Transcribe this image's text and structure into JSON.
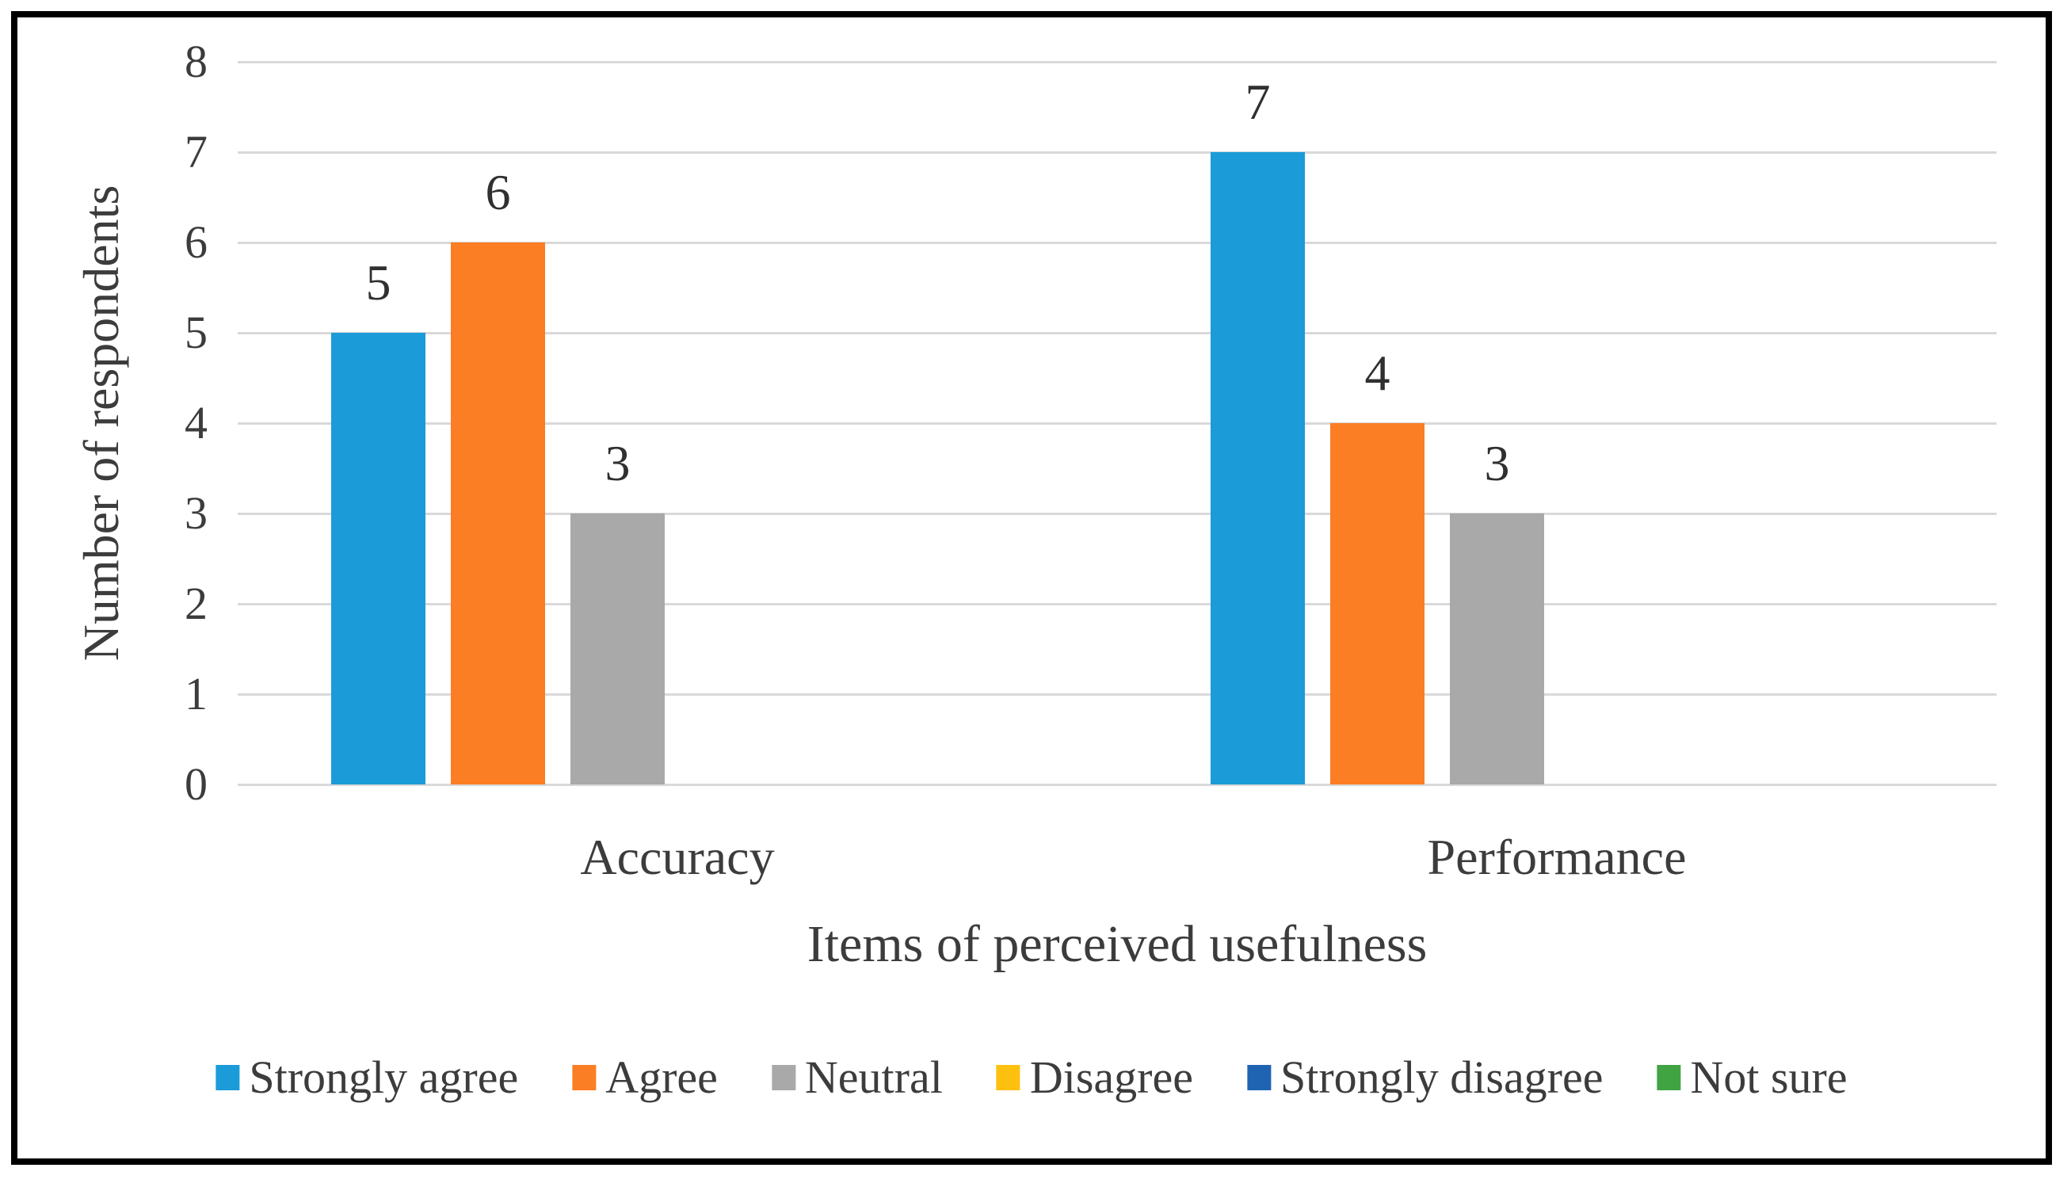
{
  "figure": {
    "background_color": "#ffffff",
    "frame_border_color": "#000000"
  },
  "chart_data": {
    "type": "bar",
    "title": "",
    "categories": [
      "Accuracy",
      "Performance"
    ],
    "series": [
      {
        "name": "Strongly agree",
        "color": "#1B9BD8",
        "values": [
          5,
          7
        ]
      },
      {
        "name": "Agree",
        "color": "#FB7D24",
        "values": [
          6,
          4
        ]
      },
      {
        "name": "Neutral",
        "color": "#A9A9A9",
        "values": [
          3,
          3
        ]
      },
      {
        "name": "Disagree",
        "color": "#FEC00F",
        "values": [
          0,
          0
        ]
      },
      {
        "name": "Strongly disagree",
        "color": "#1E64B2",
        "values": [
          0,
          0
        ]
      },
      {
        "name": "Not sure",
        "color": "#41A443",
        "values": [
          0,
          0
        ]
      }
    ],
    "xlabel": "Items of perceived usefulness",
    "ylabel": "Number of respondents",
    "ylim": [
      0,
      8
    ],
    "yticks": [
      0,
      1,
      2,
      3,
      4,
      5,
      6,
      7,
      8
    ],
    "grid": true,
    "gridline_color": "#D9D9D9",
    "axis_text_color": "#3C3C3C",
    "data_label_color": "#303030",
    "data_labels_shown": true,
    "legend_position": "bottom"
  }
}
